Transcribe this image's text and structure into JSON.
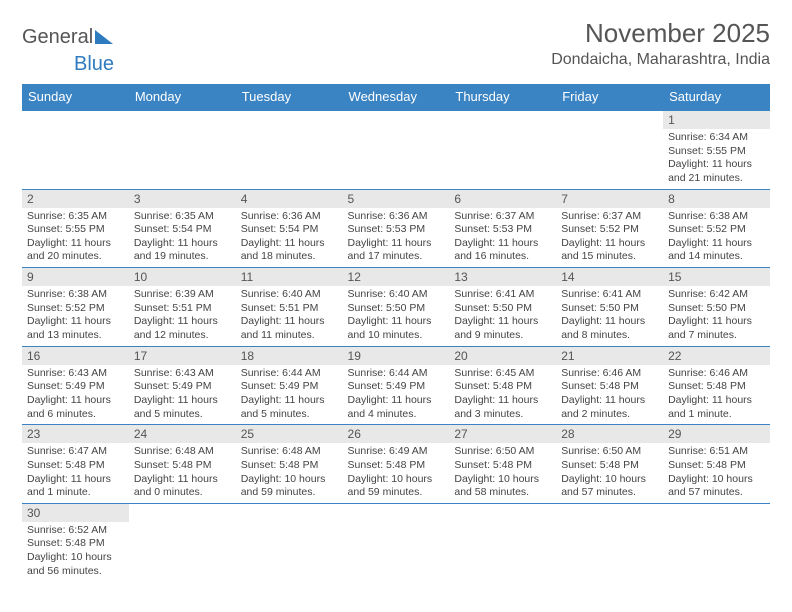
{
  "logo": {
    "part1": "General",
    "part2": "Blue"
  },
  "header": {
    "month_title": "November 2025",
    "location": "Dondaicha, Maharashtra, India"
  },
  "colors": {
    "header_bg": "#3b84c4",
    "header_text": "#ffffff",
    "daynum_bg": "#e8e8e8",
    "border": "#3b84c4",
    "text": "#444444",
    "logo_accent": "#2f7bbf"
  },
  "weekdays": [
    "Sunday",
    "Monday",
    "Tuesday",
    "Wednesday",
    "Thursday",
    "Friday",
    "Saturday"
  ],
  "weeks": [
    [
      null,
      null,
      null,
      null,
      null,
      null,
      {
        "num": "1",
        "sunrise": "Sunrise: 6:34 AM",
        "sunset": "Sunset: 5:55 PM",
        "daylight": "Daylight: 11 hours and 21 minutes."
      }
    ],
    [
      {
        "num": "2",
        "sunrise": "Sunrise: 6:35 AM",
        "sunset": "Sunset: 5:55 PM",
        "daylight": "Daylight: 11 hours and 20 minutes."
      },
      {
        "num": "3",
        "sunrise": "Sunrise: 6:35 AM",
        "sunset": "Sunset: 5:54 PM",
        "daylight": "Daylight: 11 hours and 19 minutes."
      },
      {
        "num": "4",
        "sunrise": "Sunrise: 6:36 AM",
        "sunset": "Sunset: 5:54 PM",
        "daylight": "Daylight: 11 hours and 18 minutes."
      },
      {
        "num": "5",
        "sunrise": "Sunrise: 6:36 AM",
        "sunset": "Sunset: 5:53 PM",
        "daylight": "Daylight: 11 hours and 17 minutes."
      },
      {
        "num": "6",
        "sunrise": "Sunrise: 6:37 AM",
        "sunset": "Sunset: 5:53 PM",
        "daylight": "Daylight: 11 hours and 16 minutes."
      },
      {
        "num": "7",
        "sunrise": "Sunrise: 6:37 AM",
        "sunset": "Sunset: 5:52 PM",
        "daylight": "Daylight: 11 hours and 15 minutes."
      },
      {
        "num": "8",
        "sunrise": "Sunrise: 6:38 AM",
        "sunset": "Sunset: 5:52 PM",
        "daylight": "Daylight: 11 hours and 14 minutes."
      }
    ],
    [
      {
        "num": "9",
        "sunrise": "Sunrise: 6:38 AM",
        "sunset": "Sunset: 5:52 PM",
        "daylight": "Daylight: 11 hours and 13 minutes."
      },
      {
        "num": "10",
        "sunrise": "Sunrise: 6:39 AM",
        "sunset": "Sunset: 5:51 PM",
        "daylight": "Daylight: 11 hours and 12 minutes."
      },
      {
        "num": "11",
        "sunrise": "Sunrise: 6:40 AM",
        "sunset": "Sunset: 5:51 PM",
        "daylight": "Daylight: 11 hours and 11 minutes."
      },
      {
        "num": "12",
        "sunrise": "Sunrise: 6:40 AM",
        "sunset": "Sunset: 5:50 PM",
        "daylight": "Daylight: 11 hours and 10 minutes."
      },
      {
        "num": "13",
        "sunrise": "Sunrise: 6:41 AM",
        "sunset": "Sunset: 5:50 PM",
        "daylight": "Daylight: 11 hours and 9 minutes."
      },
      {
        "num": "14",
        "sunrise": "Sunrise: 6:41 AM",
        "sunset": "Sunset: 5:50 PM",
        "daylight": "Daylight: 11 hours and 8 minutes."
      },
      {
        "num": "15",
        "sunrise": "Sunrise: 6:42 AM",
        "sunset": "Sunset: 5:50 PM",
        "daylight": "Daylight: 11 hours and 7 minutes."
      }
    ],
    [
      {
        "num": "16",
        "sunrise": "Sunrise: 6:43 AM",
        "sunset": "Sunset: 5:49 PM",
        "daylight": "Daylight: 11 hours and 6 minutes."
      },
      {
        "num": "17",
        "sunrise": "Sunrise: 6:43 AM",
        "sunset": "Sunset: 5:49 PM",
        "daylight": "Daylight: 11 hours and 5 minutes."
      },
      {
        "num": "18",
        "sunrise": "Sunrise: 6:44 AM",
        "sunset": "Sunset: 5:49 PM",
        "daylight": "Daylight: 11 hours and 5 minutes."
      },
      {
        "num": "19",
        "sunrise": "Sunrise: 6:44 AM",
        "sunset": "Sunset: 5:49 PM",
        "daylight": "Daylight: 11 hours and 4 minutes."
      },
      {
        "num": "20",
        "sunrise": "Sunrise: 6:45 AM",
        "sunset": "Sunset: 5:48 PM",
        "daylight": "Daylight: 11 hours and 3 minutes."
      },
      {
        "num": "21",
        "sunrise": "Sunrise: 6:46 AM",
        "sunset": "Sunset: 5:48 PM",
        "daylight": "Daylight: 11 hours and 2 minutes."
      },
      {
        "num": "22",
        "sunrise": "Sunrise: 6:46 AM",
        "sunset": "Sunset: 5:48 PM",
        "daylight": "Daylight: 11 hours and 1 minute."
      }
    ],
    [
      {
        "num": "23",
        "sunrise": "Sunrise: 6:47 AM",
        "sunset": "Sunset: 5:48 PM",
        "daylight": "Daylight: 11 hours and 1 minute."
      },
      {
        "num": "24",
        "sunrise": "Sunrise: 6:48 AM",
        "sunset": "Sunset: 5:48 PM",
        "daylight": "Daylight: 11 hours and 0 minutes."
      },
      {
        "num": "25",
        "sunrise": "Sunrise: 6:48 AM",
        "sunset": "Sunset: 5:48 PM",
        "daylight": "Daylight: 10 hours and 59 minutes."
      },
      {
        "num": "26",
        "sunrise": "Sunrise: 6:49 AM",
        "sunset": "Sunset: 5:48 PM",
        "daylight": "Daylight: 10 hours and 59 minutes."
      },
      {
        "num": "27",
        "sunrise": "Sunrise: 6:50 AM",
        "sunset": "Sunset: 5:48 PM",
        "daylight": "Daylight: 10 hours and 58 minutes."
      },
      {
        "num": "28",
        "sunrise": "Sunrise: 6:50 AM",
        "sunset": "Sunset: 5:48 PM",
        "daylight": "Daylight: 10 hours and 57 minutes."
      },
      {
        "num": "29",
        "sunrise": "Sunrise: 6:51 AM",
        "sunset": "Sunset: 5:48 PM",
        "daylight": "Daylight: 10 hours and 57 minutes."
      }
    ],
    [
      {
        "num": "30",
        "sunrise": "Sunrise: 6:52 AM",
        "sunset": "Sunset: 5:48 PM",
        "daylight": "Daylight: 10 hours and 56 minutes."
      },
      null,
      null,
      null,
      null,
      null,
      null
    ]
  ]
}
